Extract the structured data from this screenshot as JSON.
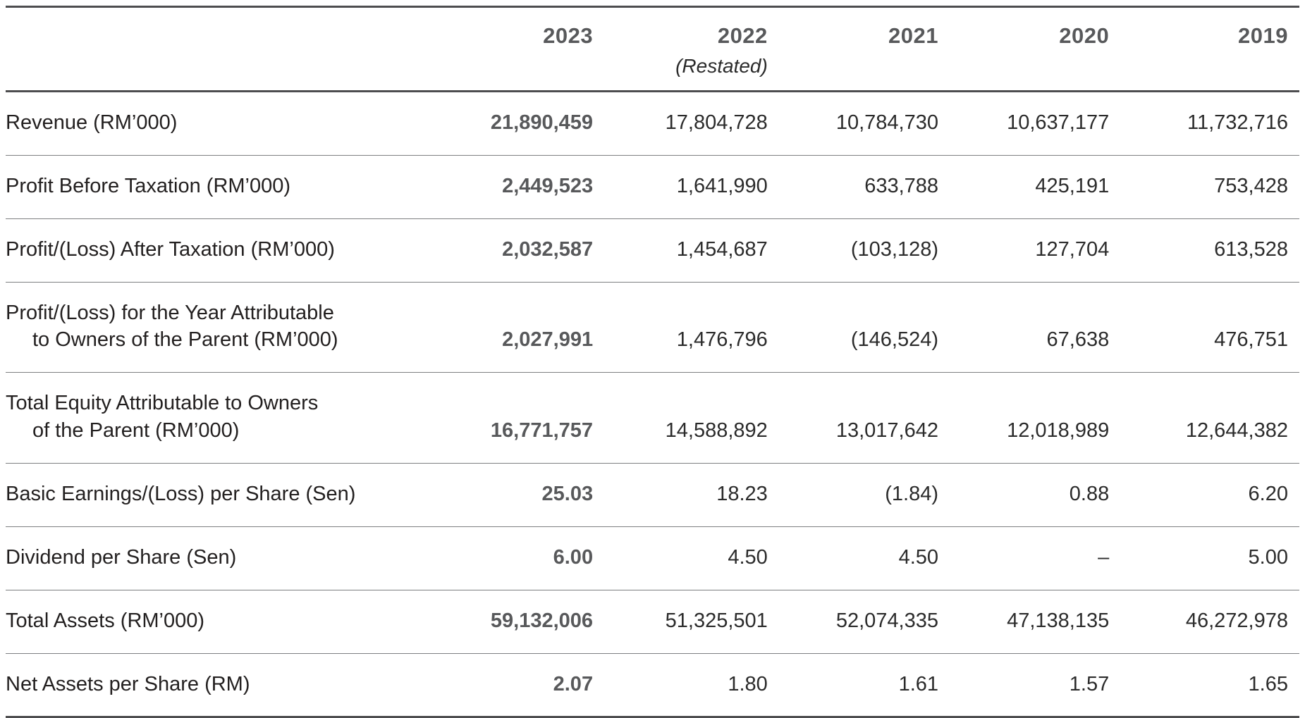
{
  "table": {
    "header": {
      "years": [
        "2023",
        "2022",
        "2021",
        "2020",
        "2019"
      ],
      "restated_note": "(Restated)"
    },
    "rows": [
      {
        "label": "Revenue (RM’000)",
        "values": [
          "21,890,459",
          "17,804,728",
          "10,784,730",
          "10,637,177",
          "11,732,716"
        ]
      },
      {
        "label": "Profit Before Taxation (RM’000)",
        "values": [
          "2,449,523",
          "1,641,990",
          "633,788",
          "425,191",
          "753,428"
        ]
      },
      {
        "label": "Profit/(Loss) After Taxation (RM’000)",
        "values": [
          "2,032,587",
          "1,454,687",
          "(103,128)",
          "127,704",
          "613,528"
        ]
      },
      {
        "label": "Profit/(Loss) for the Year Attributable",
        "label2": "to Owners of the Parent (RM’000)",
        "values": [
          "2,027,991",
          "1,476,796",
          "(146,524)",
          "67,638",
          "476,751"
        ]
      },
      {
        "label": "Total Equity Attributable to Owners",
        "label2": "of the Parent (RM’000)",
        "values": [
          "16,771,757",
          "14,588,892",
          "13,017,642",
          "12,018,989",
          "12,644,382"
        ]
      },
      {
        "label": "Basic Earnings/(Loss) per Share (Sen)",
        "values": [
          "25.03",
          "18.23",
          "(1.84)",
          "0.88",
          "6.20"
        ]
      },
      {
        "label": "Dividend per Share (Sen)",
        "values": [
          "6.00",
          "4.50",
          "4.50",
          "–",
          "5.00"
        ]
      },
      {
        "label": "Total Assets (RM’000)",
        "values": [
          "59,132,006",
          "51,325,501",
          "52,074,335",
          "47,138,135",
          "46,272,978"
        ]
      },
      {
        "label": "Net Assets per Share (RM)",
        "values": [
          "2.07",
          "1.80",
          "1.61",
          "1.57",
          "1.65"
        ]
      }
    ],
    "colors": {
      "accent_bold_text": "#58595b",
      "body_text": "#2b2b2b",
      "rule_heavy": "#4d4d4f",
      "rule_light": "#7d7f81"
    }
  }
}
